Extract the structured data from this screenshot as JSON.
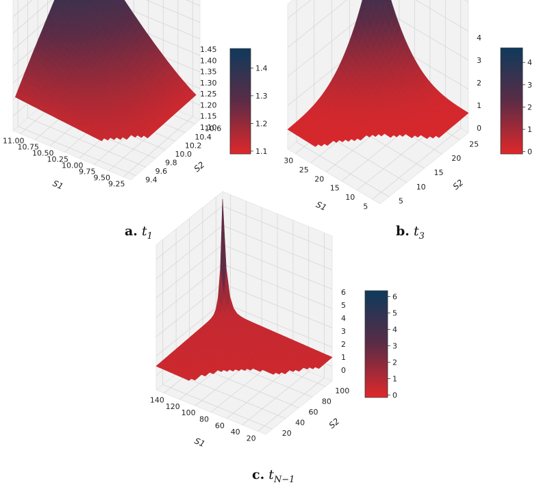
{
  "chart_data": [
    {
      "type": "surface",
      "panel_letter": "a.",
      "panel_var": "t",
      "panel_sub": "1",
      "x_ticks": [
        "9.25",
        "9.50",
        "9.75",
        "10.00",
        "10.25",
        "10.50",
        "10.75",
        "11.00"
      ],
      "y_ticks": [
        "9.4",
        "9.6",
        "9.8",
        "10.0",
        "10.2",
        "10.4",
        "10.6"
      ],
      "z_ticks": [
        "1.10",
        "1.15",
        "1.20",
        "1.25",
        "1.30",
        "1.35",
        "1.40",
        "1.45"
      ],
      "xlabel": "S1",
      "ylabel": "S2",
      "xlim": [
        9.1,
        11.0
      ],
      "ylim": [
        9.35,
        10.65
      ],
      "zlim": [
        1.08,
        1.46
      ],
      "colorbar_ticks": [
        "1.1",
        "1.2",
        "1.3",
        "1.4"
      ],
      "colorbar_range": [
        1.09,
        1.47
      ]
    },
    {
      "type": "surface",
      "panel_letter": "b.",
      "panel_var": "t",
      "panel_sub": "3",
      "x_ticks": [
        "5",
        "10",
        "15",
        "20",
        "25",
        "30"
      ],
      "y_ticks": [
        "5",
        "10",
        "15",
        "20",
        "25"
      ],
      "z_ticks": [
        "0",
        "1",
        "2",
        "3",
        "4"
      ],
      "xlabel": "S1",
      "ylabel": "S2",
      "xlim": [
        3,
        32
      ],
      "ylim": [
        3,
        27
      ],
      "zlim": [
        0,
        4.7
      ],
      "colorbar_ticks": [
        "0",
        "1",
        "2",
        "3",
        "4"
      ],
      "colorbar_range": [
        -0.1,
        4.65
      ]
    },
    {
      "type": "surface",
      "panel_letter": "c.",
      "panel_var": "t",
      "panel_sub": "N−1",
      "x_ticks": [
        "20",
        "40",
        "60",
        "80",
        "100",
        "120",
        "140"
      ],
      "y_ticks": [
        "20",
        "40",
        "60",
        "80",
        "100"
      ],
      "z_ticks": [
        "0",
        "1",
        "2",
        "3",
        "4",
        "5",
        "6"
      ],
      "xlabel": "S1",
      "ylabel": "S2",
      "xlim": [
        5,
        150
      ],
      "ylim": [
        5,
        105
      ],
      "zlim": [
        0,
        6.6
      ],
      "colorbar_ticks": [
        "0",
        "1",
        "2",
        "3",
        "4",
        "5",
        "6"
      ],
      "colorbar_range": [
        -0.15,
        6.35
      ]
    }
  ],
  "colormap": {
    "low": "#e0282b",
    "mid": "#5b2c46",
    "high": "#0e3a5c"
  },
  "pane_color": "#f2f2f2",
  "grid_color": "#d6d6d6"
}
